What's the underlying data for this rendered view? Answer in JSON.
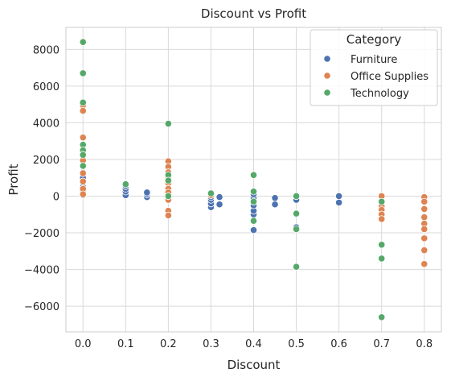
{
  "chart_data": {
    "type": "scatter",
    "title": "Discount vs Profit",
    "xlabel": "Discount",
    "ylabel": "Profit",
    "xlim": [
      -0.04,
      0.84
    ],
    "ylim": [
      -7400,
      9200
    ],
    "xticks": [
      0.0,
      0.1,
      0.2,
      0.3,
      0.4,
      0.5,
      0.6,
      0.7,
      0.8
    ],
    "xtick_labels": [
      "0.0",
      "0.1",
      "0.2",
      "0.3",
      "0.4",
      "0.5",
      "0.6",
      "0.7",
      "0.8"
    ],
    "yticks": [
      -6000,
      -4000,
      -2000,
      0,
      2000,
      4000,
      6000,
      8000
    ],
    "ytick_labels": [
      "−6000",
      "−4000",
      "−2000",
      "0",
      "2000",
      "4000",
      "6000",
      "8000"
    ],
    "grid": true,
    "legend": {
      "title": "Category",
      "placement": "top-right"
    },
    "series": [
      {
        "name": "Furniture",
        "color": "#4c72b0",
        "points": [
          [
            0.0,
            200
          ],
          [
            0.0,
            500
          ],
          [
            0.0,
            800
          ],
          [
            0.0,
            1000
          ],
          [
            0.0,
            1300
          ],
          [
            0.0,
            50
          ],
          [
            0.1,
            50
          ],
          [
            0.1,
            250
          ],
          [
            0.1,
            400
          ],
          [
            0.1,
            550
          ],
          [
            0.15,
            -50
          ],
          [
            0.15,
            100
          ],
          [
            0.15,
            200
          ],
          [
            0.2,
            -200
          ],
          [
            0.2,
            100
          ],
          [
            0.2,
            300
          ],
          [
            0.3,
            -600
          ],
          [
            0.3,
            -400
          ],
          [
            0.3,
            -200
          ],
          [
            0.3,
            -50
          ],
          [
            0.32,
            -450
          ],
          [
            0.32,
            -50
          ],
          [
            0.4,
            -1850
          ],
          [
            0.4,
            -1000
          ],
          [
            0.4,
            -800
          ],
          [
            0.4,
            -500
          ],
          [
            0.4,
            -300
          ],
          [
            0.4,
            -100
          ],
          [
            0.4,
            100
          ],
          [
            0.45,
            -450
          ],
          [
            0.45,
            -100
          ],
          [
            0.5,
            -1700
          ],
          [
            0.5,
            -200
          ],
          [
            0.6,
            -350
          ],
          [
            0.6,
            0
          ],
          [
            0.7,
            -800
          ],
          [
            0.7,
            -300
          ]
        ]
      },
      {
        "name": "Office Supplies",
        "color": "#dd8452",
        "points": [
          [
            0.0,
            8400
          ],
          [
            0.0,
            5000
          ],
          [
            0.0,
            4950
          ],
          [
            0.0,
            4650
          ],
          [
            0.0,
            3200
          ],
          [
            0.0,
            1950
          ],
          [
            0.0,
            1650
          ],
          [
            0.0,
            1250
          ],
          [
            0.0,
            800
          ],
          [
            0.0,
            400
          ],
          [
            0.0,
            100
          ],
          [
            0.2,
            1900
          ],
          [
            0.2,
            1600
          ],
          [
            0.2,
            1300
          ],
          [
            0.2,
            1000
          ],
          [
            0.2,
            700
          ],
          [
            0.2,
            400
          ],
          [
            0.2,
            200
          ],
          [
            0.2,
            -200
          ],
          [
            0.2,
            -800
          ],
          [
            0.2,
            -1050
          ],
          [
            0.3,
            50
          ],
          [
            0.7,
            0
          ],
          [
            0.7,
            -300
          ],
          [
            0.7,
            -550
          ],
          [
            0.7,
            -750
          ],
          [
            0.7,
            -1000
          ],
          [
            0.7,
            -1250
          ],
          [
            0.8,
            -50
          ],
          [
            0.8,
            -300
          ],
          [
            0.8,
            -700
          ],
          [
            0.8,
            -1150
          ],
          [
            0.8,
            -1500
          ],
          [
            0.8,
            -1800
          ],
          [
            0.8,
            -2300
          ],
          [
            0.8,
            -2950
          ],
          [
            0.8,
            -3700
          ]
        ]
      },
      {
        "name": "Technology",
        "color": "#55a868",
        "points": [
          [
            0.0,
            8400
          ],
          [
            0.0,
            6700
          ],
          [
            0.0,
            5100
          ],
          [
            0.0,
            2800
          ],
          [
            0.0,
            2500
          ],
          [
            0.0,
            2250
          ],
          [
            0.0,
            1650
          ],
          [
            0.1,
            650
          ],
          [
            0.2,
            3950
          ],
          [
            0.2,
            1150
          ],
          [
            0.2,
            850
          ],
          [
            0.2,
            0
          ],
          [
            0.3,
            150
          ],
          [
            0.4,
            1150
          ],
          [
            0.4,
            250
          ],
          [
            0.4,
            -300
          ],
          [
            0.4,
            -1350
          ],
          [
            0.5,
            0
          ],
          [
            0.5,
            -950
          ],
          [
            0.5,
            -1800
          ],
          [
            0.5,
            -3850
          ],
          [
            0.7,
            -300
          ],
          [
            0.7,
            -2650
          ],
          [
            0.7,
            -3400
          ],
          [
            0.7,
            -6600
          ]
        ]
      }
    ]
  }
}
